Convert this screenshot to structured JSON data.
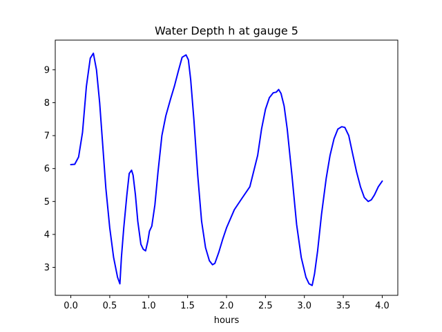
{
  "chart_data": {
    "type": "line",
    "title": "Water Depth h at gauge 5",
    "xlabel": "hours",
    "ylabel": "",
    "xlim": [
      -0.2,
      4.2
    ],
    "ylim": [
      2.15,
      9.9
    ],
    "xticks": [
      0.0,
      0.5,
      1.0,
      1.5,
      2.0,
      2.5,
      3.0,
      3.5,
      4.0
    ],
    "xtick_labels": [
      "0.0",
      "0.5",
      "1.0",
      "1.5",
      "2.0",
      "2.5",
      "3.0",
      "3.5",
      "4.0"
    ],
    "yticks": [
      3,
      4,
      5,
      6,
      7,
      8,
      9
    ],
    "ytick_labels": [
      "3",
      "4",
      "5",
      "6",
      "7",
      "8",
      "9"
    ],
    "grid": false,
    "series": [
      {
        "color": "#0000ff",
        "x": [
          0.0,
          0.05,
          0.1,
          0.15,
          0.2,
          0.25,
          0.29,
          0.33,
          0.37,
          0.41,
          0.45,
          0.5,
          0.55,
          0.6,
          0.63,
          0.65,
          0.68,
          0.72,
          0.75,
          0.78,
          0.8,
          0.83,
          0.86,
          0.9,
          0.93,
          0.96,
          0.99,
          1.01,
          1.04,
          1.08,
          1.12,
          1.17,
          1.22,
          1.28,
          1.33,
          1.38,
          1.43,
          1.48,
          1.51,
          1.54,
          1.58,
          1.63,
          1.68,
          1.73,
          1.78,
          1.82,
          1.85,
          1.9,
          1.95,
          2.0,
          2.1,
          2.2,
          2.3,
          2.4,
          2.45,
          2.5,
          2.55,
          2.6,
          2.64,
          2.67,
          2.7,
          2.74,
          2.78,
          2.84,
          2.9,
          2.96,
          3.02,
          3.06,
          3.1,
          3.13,
          3.17,
          3.22,
          3.28,
          3.33,
          3.38,
          3.43,
          3.48,
          3.52,
          3.57,
          3.62,
          3.67,
          3.72,
          3.77,
          3.82,
          3.86,
          3.9,
          3.95,
          4.0
        ],
        "y": [
          6.12,
          6.13,
          6.35,
          7.1,
          8.5,
          9.35,
          9.5,
          9.0,
          8.0,
          6.7,
          5.4,
          4.2,
          3.3,
          2.7,
          2.5,
          3.3,
          4.2,
          5.2,
          5.85,
          5.95,
          5.8,
          5.2,
          4.4,
          3.7,
          3.55,
          3.5,
          3.8,
          4.1,
          4.25,
          4.9,
          5.9,
          7.0,
          7.6,
          8.1,
          8.5,
          8.95,
          9.38,
          9.45,
          9.3,
          8.7,
          7.5,
          5.8,
          4.4,
          3.6,
          3.2,
          3.08,
          3.12,
          3.45,
          3.85,
          4.2,
          4.75,
          5.1,
          5.45,
          6.4,
          7.2,
          7.8,
          8.15,
          8.3,
          8.32,
          8.4,
          8.28,
          7.9,
          7.2,
          5.8,
          4.3,
          3.3,
          2.7,
          2.5,
          2.45,
          2.8,
          3.5,
          4.6,
          5.7,
          6.4,
          6.9,
          7.2,
          7.27,
          7.25,
          7.0,
          6.45,
          5.9,
          5.45,
          5.12,
          5.0,
          5.05,
          5.2,
          5.45,
          5.62
        ]
      }
    ]
  }
}
